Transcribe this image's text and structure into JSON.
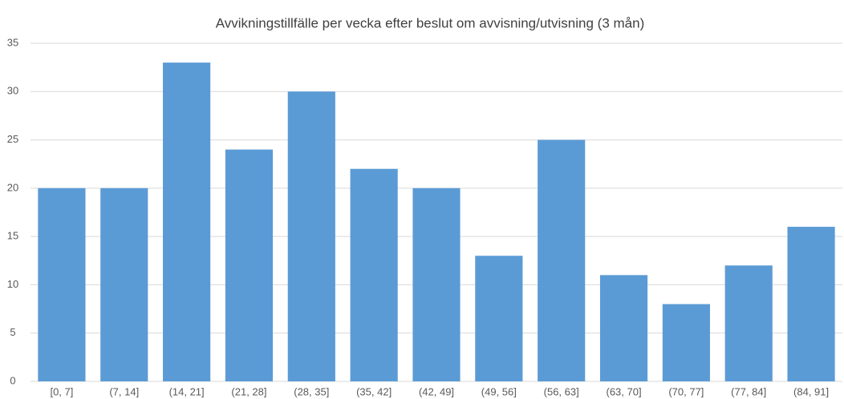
{
  "chart_data": {
    "type": "bar",
    "title": "Avvikningstillfälle per vecka efter beslut om avvisning/utvisning (3 mån)",
    "categories": [
      "[0, 7]",
      "(7, 14]",
      "(14, 21]",
      "(21, 28]",
      "(28, 35]",
      "(35, 42]",
      "(42, 49]",
      "(49, 56]",
      "(56, 63]",
      "(63, 70]",
      "(70, 77]",
      "(77, 84]",
      "(84, 91]"
    ],
    "values": [
      20,
      20,
      33,
      24,
      30,
      22,
      20,
      13,
      25,
      11,
      8,
      12,
      16
    ],
    "color": "#5b9bd5",
    "ylim": [
      0,
      35
    ],
    "yticks": [
      0,
      5,
      10,
      15,
      20,
      25,
      30,
      35
    ],
    "grid": true
  }
}
